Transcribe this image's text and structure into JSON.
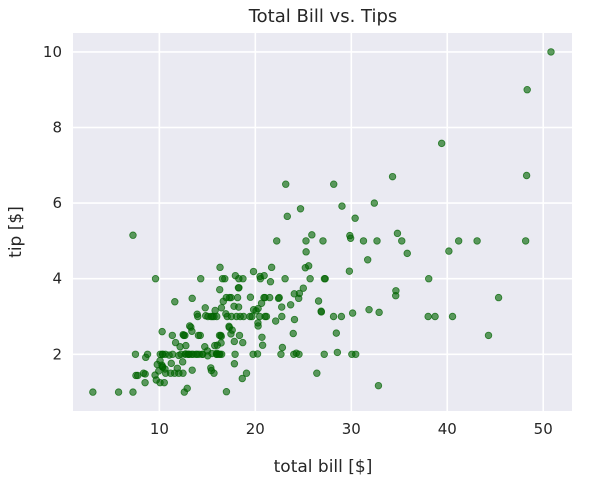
{
  "chart_data": {
    "type": "scatter",
    "title": "Total Bill vs. Tips",
    "xlabel": "total bill [$]",
    "ylabel": "tip [$]",
    "xlim": [
      1,
      53
    ],
    "ylim": [
      0.5,
      10.5
    ],
    "xticks": [
      10,
      20,
      30,
      40,
      50
    ],
    "yticks": [
      2,
      4,
      6,
      8,
      10
    ],
    "grid": true,
    "marker_color": "#006400",
    "background_color": "#eaeaf2",
    "grid_color": "#ffffff",
    "series": [
      {
        "points": [
          [
            3.07,
            1.0
          ],
          [
            5.75,
            1.0
          ],
          [
            7.25,
            1.0
          ],
          [
            7.25,
            5.15
          ],
          [
            7.51,
            2.0
          ],
          [
            7.56,
            1.44
          ],
          [
            7.74,
            1.44
          ],
          [
            8.35,
            1.5
          ],
          [
            8.51,
            1.25
          ],
          [
            8.52,
            1.48
          ],
          [
            8.58,
            1.92
          ],
          [
            8.77,
            2.0
          ],
          [
            9.55,
            1.45
          ],
          [
            9.6,
            4.0
          ],
          [
            9.68,
            1.32
          ],
          [
            9.78,
            1.73
          ],
          [
            9.94,
            1.56
          ],
          [
            10.07,
            1.83
          ],
          [
            10.07,
            1.25
          ],
          [
            10.09,
            2.0
          ],
          [
            10.27,
            1.71
          ],
          [
            10.29,
            2.6
          ],
          [
            10.33,
            1.67
          ],
          [
            10.33,
            2.0
          ],
          [
            10.34,
            2.0
          ],
          [
            10.34,
            1.66
          ],
          [
            10.51,
            1.25
          ],
          [
            10.59,
            1.61
          ],
          [
            10.63,
            2.0
          ],
          [
            10.65,
            1.5
          ],
          [
            11.02,
            1.98
          ],
          [
            11.17,
            1.5
          ],
          [
            11.24,
            1.76
          ],
          [
            11.35,
            2.5
          ],
          [
            11.38,
            2.0
          ],
          [
            11.59,
            1.5
          ],
          [
            11.61,
            3.39
          ],
          [
            11.69,
            2.31
          ],
          [
            11.87,
            1.63
          ],
          [
            12.02,
            1.97
          ],
          [
            12.03,
            1.5
          ],
          [
            12.16,
            2.2
          ],
          [
            12.26,
            2.0
          ],
          [
            12.43,
            1.8
          ],
          [
            12.46,
            1.5
          ],
          [
            12.48,
            2.52
          ],
          [
            12.54,
            2.5
          ],
          [
            12.6,
            1.0
          ],
          [
            12.66,
            2.5
          ],
          [
            12.69,
            2.0
          ],
          [
            12.74,
            2.01
          ],
          [
            12.76,
            2.23
          ],
          [
            12.9,
            1.1
          ],
          [
            13.0,
            2.0
          ],
          [
            13.03,
            2.0
          ],
          [
            13.13,
            2.0
          ],
          [
            13.16,
            2.75
          ],
          [
            13.28,
            2.72
          ],
          [
            13.37,
            2.0
          ],
          [
            13.39,
            2.61
          ],
          [
            13.42,
            3.48
          ],
          [
            13.42,
            1.58
          ],
          [
            13.51,
            2.0
          ],
          [
            13.81,
            2.0
          ],
          [
            13.94,
            3.06
          ],
          [
            13.94,
            2.0
          ],
          [
            14.0,
            3.0
          ],
          [
            14.07,
            2.5
          ],
          [
            14.15,
            2.0
          ],
          [
            14.26,
            2.5
          ],
          [
            14.31,
            4.0
          ],
          [
            14.48,
            2.0
          ],
          [
            14.52,
            2.0
          ],
          [
            14.73,
            2.2
          ],
          [
            14.78,
            3.23
          ],
          [
            14.83,
            3.02
          ],
          [
            15.01,
            2.09
          ],
          [
            15.04,
            1.96
          ],
          [
            15.06,
            3.0
          ],
          [
            15.36,
            1.64
          ],
          [
            15.38,
            3.0
          ],
          [
            15.42,
            1.57
          ],
          [
            15.48,
            2.02
          ],
          [
            15.53,
            3.0
          ],
          [
            15.69,
            1.5
          ],
          [
            15.69,
            3.0
          ],
          [
            15.77,
            2.23
          ],
          [
            15.81,
            3.16
          ],
          [
            15.95,
            2.0
          ],
          [
            15.98,
            2.03
          ],
          [
            15.98,
            3.0
          ],
          [
            16.0,
            2.0
          ],
          [
            16.04,
            2.24
          ],
          [
            16.21,
            2.0
          ],
          [
            16.27,
            2.5
          ],
          [
            16.29,
            3.71
          ],
          [
            16.31,
            2.0
          ],
          [
            16.32,
            4.3
          ],
          [
            16.4,
            2.5
          ],
          [
            16.43,
            2.3
          ],
          [
            16.45,
            2.47
          ],
          [
            16.47,
            3.23
          ],
          [
            16.49,
            2.0
          ],
          [
            16.58,
            4.0
          ],
          [
            16.66,
            3.4
          ],
          [
            16.82,
            4.0
          ],
          [
            16.93,
            3.07
          ],
          [
            16.97,
            3.5
          ],
          [
            16.99,
            1.01
          ],
          [
            17.07,
            3.0
          ],
          [
            17.26,
            2.74
          ],
          [
            17.29,
            2.71
          ],
          [
            17.31,
            3.5
          ],
          [
            17.46,
            2.54
          ],
          [
            17.47,
            3.5
          ],
          [
            17.51,
            3.0
          ],
          [
            17.59,
            2.64
          ],
          [
            17.78,
            3.27
          ],
          [
            17.81,
            2.34
          ],
          [
            17.82,
            1.75
          ],
          [
            17.89,
            2.0
          ],
          [
            17.92,
            4.08
          ],
          [
            18.04,
            3.0
          ],
          [
            18.15,
            3.5
          ],
          [
            18.24,
            3.76
          ],
          [
            18.26,
            3.25
          ],
          [
            18.28,
            4.0
          ],
          [
            18.29,
            3.76
          ],
          [
            18.35,
            2.5
          ],
          [
            18.43,
            3.0
          ],
          [
            18.64,
            1.36
          ],
          [
            18.69,
            2.31
          ],
          [
            18.71,
            4.0
          ],
          [
            18.78,
            3.0
          ],
          [
            19.08,
            1.5
          ],
          [
            19.44,
            3.0
          ],
          [
            19.49,
            3.51
          ],
          [
            19.65,
            3.0
          ],
          [
            19.77,
            2.0
          ],
          [
            19.81,
            4.19
          ],
          [
            19.82,
            3.18
          ],
          [
            20.08,
            3.15
          ],
          [
            20.23,
            2.01
          ],
          [
            20.27,
            2.83
          ],
          [
            20.29,
            2.75
          ],
          [
            20.29,
            3.21
          ],
          [
            20.45,
            3.0
          ],
          [
            20.49,
            4.06
          ],
          [
            20.53,
            4.0
          ],
          [
            20.65,
            3.35
          ],
          [
            20.69,
            2.45
          ],
          [
            20.76,
            2.24
          ],
          [
            20.9,
            3.5
          ],
          [
            20.92,
            4.08
          ],
          [
            21.01,
            3.5
          ],
          [
            21.01,
            3.0
          ],
          [
            21.16,
            3.0
          ],
          [
            21.5,
            3.5
          ],
          [
            21.58,
            3.92
          ],
          [
            21.7,
            4.3
          ],
          [
            22.12,
            2.88
          ],
          [
            22.23,
            5.0
          ],
          [
            22.42,
            3.48
          ],
          [
            22.49,
            3.5
          ],
          [
            22.67,
            2.0
          ],
          [
            22.75,
            3.25
          ],
          [
            22.76,
            3.0
          ],
          [
            22.82,
            2.18
          ],
          [
            23.1,
            4.0
          ],
          [
            23.17,
            6.5
          ],
          [
            23.33,
            5.65
          ],
          [
            23.68,
            3.31
          ],
          [
            23.95,
            2.55
          ],
          [
            24.01,
            2.0
          ],
          [
            24.06,
            3.6
          ],
          [
            24.08,
            2.92
          ],
          [
            24.27,
            2.03
          ],
          [
            24.52,
            3.48
          ],
          [
            24.55,
            2.0
          ],
          [
            24.59,
            3.61
          ],
          [
            24.71,
            5.85
          ],
          [
            25.0,
            3.75
          ],
          [
            25.21,
            4.29
          ],
          [
            25.28,
            5.0
          ],
          [
            25.29,
            4.71
          ],
          [
            25.56,
            4.34
          ],
          [
            25.71,
            4.0
          ],
          [
            25.89,
            5.16
          ],
          [
            26.41,
            1.5
          ],
          [
            26.59,
            3.41
          ],
          [
            26.86,
            3.14
          ],
          [
            26.88,
            3.12
          ],
          [
            27.05,
            5.0
          ],
          [
            27.18,
            2.0
          ],
          [
            27.2,
            4.0
          ],
          [
            27.28,
            4.0
          ],
          [
            28.15,
            3.0
          ],
          [
            28.17,
            6.5
          ],
          [
            28.44,
            2.56
          ],
          [
            28.55,
            2.05
          ],
          [
            28.97,
            3.0
          ],
          [
            29.03,
            5.92
          ],
          [
            29.8,
            4.2
          ],
          [
            29.85,
            5.14
          ],
          [
            29.93,
            5.07
          ],
          [
            30.06,
            2.0
          ],
          [
            30.14,
            3.09
          ],
          [
            30.4,
            5.6
          ],
          [
            30.46,
            2.0
          ],
          [
            31.27,
            5.0
          ],
          [
            31.71,
            4.5
          ],
          [
            31.85,
            3.18
          ],
          [
            32.4,
            6.0
          ],
          [
            32.68,
            5.0
          ],
          [
            32.83,
            1.17
          ],
          [
            32.9,
            3.11
          ],
          [
            34.3,
            6.7
          ],
          [
            34.63,
            3.55
          ],
          [
            34.65,
            3.68
          ],
          [
            34.81,
            5.2
          ],
          [
            35.26,
            5.0
          ],
          [
            35.83,
            4.67
          ],
          [
            38.01,
            3.0
          ],
          [
            38.07,
            4.0
          ],
          [
            38.73,
            3.0
          ],
          [
            39.42,
            7.58
          ],
          [
            40.17,
            4.73
          ],
          [
            40.55,
            3.0
          ],
          [
            41.19,
            5.0
          ],
          [
            43.11,
            5.0
          ],
          [
            44.3,
            2.5
          ],
          [
            45.35,
            3.5
          ],
          [
            48.17,
            5.0
          ],
          [
            48.27,
            6.73
          ],
          [
            48.33,
            9.0
          ],
          [
            50.81,
            10.0
          ]
        ]
      }
    ]
  }
}
